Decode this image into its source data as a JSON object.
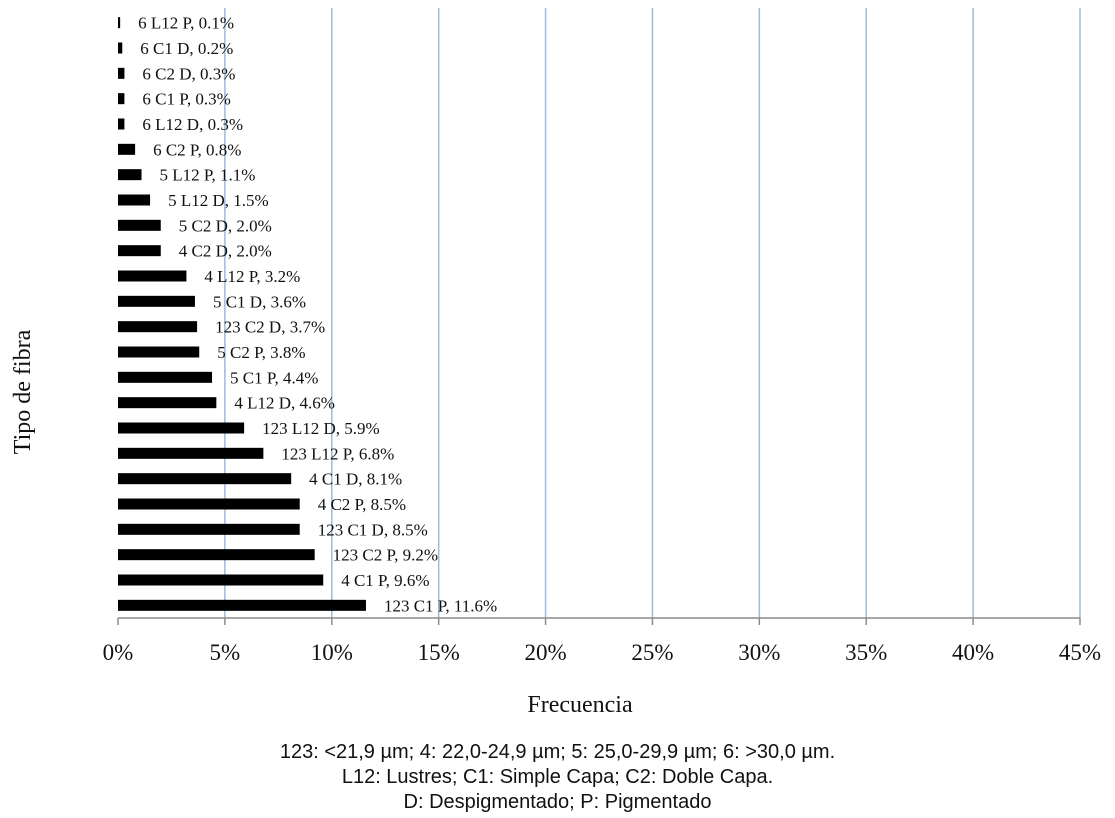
{
  "chart_data": {
    "type": "bar",
    "orientation": "horizontal",
    "xlabel": "Frecuencia",
    "ylabel": "Tipo de fibra",
    "xlim": [
      0,
      45
    ],
    "x_ticks": [
      "0%",
      "5%",
      "10%",
      "15%",
      "20%",
      "25%",
      "30%",
      "35%",
      "40%",
      "45%"
    ],
    "x_tick_values": [
      0,
      5,
      10,
      15,
      20,
      25,
      30,
      35,
      40,
      45
    ],
    "grid": "vertical",
    "bars": [
      {
        "category": "6 L12 P",
        "value": 0.1,
        "label": "6 L12 P, 0.1%"
      },
      {
        "category": "6 C1 D",
        "value": 0.2,
        "label": "6 C1 D, 0.2%"
      },
      {
        "category": "6 C2 D",
        "value": 0.3,
        "label": "6 C2 D, 0.3%"
      },
      {
        "category": "6 C1 P",
        "value": 0.3,
        "label": "6 C1 P, 0.3%"
      },
      {
        "category": "6 L12 D",
        "value": 0.3,
        "label": "6 L12 D, 0.3%"
      },
      {
        "category": "6 C2 P",
        "value": 0.8,
        "label": "6 C2 P, 0.8%"
      },
      {
        "category": "5 L12 P",
        "value": 1.1,
        "label": "5 L12 P, 1.1%"
      },
      {
        "category": "5 L12 D",
        "value": 1.5,
        "label": "5 L12 D, 1.5%"
      },
      {
        "category": "5 C2 D",
        "value": 2.0,
        "label": "5 C2 D, 2.0%"
      },
      {
        "category": "4 C2 D",
        "value": 2.0,
        "label": "4 C2 D, 2.0%"
      },
      {
        "category": "4 L12 P",
        "value": 3.2,
        "label": "4 L12 P, 3.2%"
      },
      {
        "category": "5 C1 D",
        "value": 3.6,
        "label": "5 C1 D, 3.6%"
      },
      {
        "category": "123 C2 D",
        "value": 3.7,
        "label": "123 C2 D, 3.7%"
      },
      {
        "category": "5 C2 P",
        "value": 3.8,
        "label": "5 C2 P, 3.8%"
      },
      {
        "category": "5 C1 P",
        "value": 4.4,
        "label": "5 C1 P, 4.4%"
      },
      {
        "category": "4 L12 D",
        "value": 4.6,
        "label": "4 L12 D, 4.6%"
      },
      {
        "category": "123 L12 D",
        "value": 5.9,
        "label": "123 L12 D, 5.9%"
      },
      {
        "category": "123 L12 P",
        "value": 6.8,
        "label": "123 L12 P, 6.8%"
      },
      {
        "category": "4 C1 D",
        "value": 8.1,
        "label": "4 C1 D, 8.1%"
      },
      {
        "category": "4 C2 P",
        "value": 8.5,
        "label": "4 C2 P, 8.5%"
      },
      {
        "category": "123 C1 D",
        "value": 8.5,
        "label": "123 C1 D, 8.5%"
      },
      {
        "category": "123 C2 P",
        "value": 9.2,
        "label": "123 C2 P, 9.2%"
      },
      {
        "category": "4 C1 P",
        "value": 9.6,
        "label": "4 C1 P, 9.6%"
      },
      {
        "category": "123 C1 P",
        "value": 11.6,
        "label": "123 C1 P, 11.6%"
      }
    ],
    "colors": {
      "bar": "#000000",
      "grid": "#9fb9de",
      "axis": "#8c8c8c"
    }
  },
  "caption": {
    "line1": "123: <21,9 µm; 4: 22,0-24,9 µm; 5: 25,0-29,9 µm; 6: >30,0 µm.",
    "line2": "L12: Lustres; C1: Simple Capa; C2: Doble Capa.",
    "line3": "D: Despigmentado; P: Pigmentado"
  }
}
